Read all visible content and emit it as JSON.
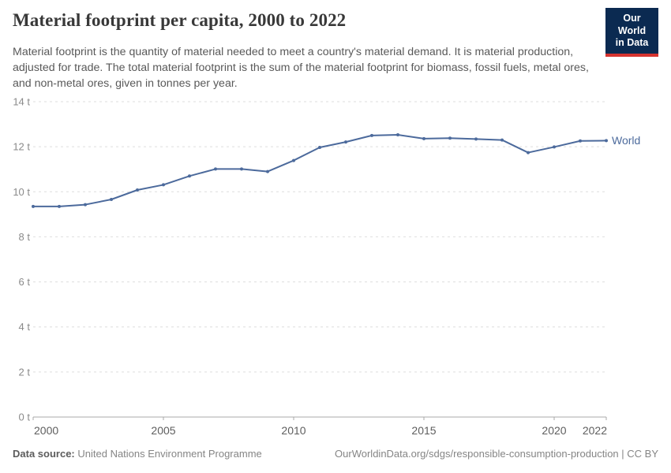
{
  "header": {
    "title": "Material footprint per capita, 2000 to 2022",
    "subtitle": "Material footprint is the quantity of material needed to meet a country's material demand. It is material production, adjusted for trade. The total material footprint is the sum of the material footprint for biomass, fossil fuels, metal ores, and non-metal ores, given in tonnes per year.",
    "logo": {
      "line1": "Our World",
      "line2": "in Data",
      "bg_color": "#0b2a51",
      "stripe_color": "#d5332f"
    }
  },
  "chart_data": {
    "type": "line",
    "title": "Material footprint per capita, 2000 to 2022",
    "x": [
      2000,
      2001,
      2002,
      2003,
      2004,
      2005,
      2006,
      2007,
      2008,
      2009,
      2010,
      2011,
      2012,
      2013,
      2014,
      2015,
      2016,
      2017,
      2018,
      2019,
      2020,
      2021,
      2022
    ],
    "series": [
      {
        "name": "World",
        "color": "#4C6A9C",
        "values": [
          9.35,
          9.35,
          9.43,
          9.66,
          10.08,
          10.31,
          10.7,
          11.01,
          11.01,
          10.9,
          11.39,
          11.97,
          12.21,
          12.5,
          12.53,
          12.36,
          12.38,
          12.34,
          12.3,
          11.74,
          11.99,
          12.26,
          12.27
        ]
      }
    ],
    "xlabel": "",
    "ylabel": "",
    "ylim": [
      0,
      14
    ],
    "yticks": [
      0,
      2,
      4,
      6,
      8,
      10,
      12,
      14
    ],
    "ytick_suffix": " t",
    "xticks": [
      2000,
      2005,
      2010,
      2015,
      2020,
      2022
    ],
    "unit": "tonnes per year",
    "grid": "horizontal-dashed",
    "legend": "line-end-label"
  },
  "footer": {
    "datasource_label": "Data source:",
    "datasource_value": "United Nations Environment Programme",
    "credit": "OurWorldinData.org/sdgs/responsible-consumption-production | CC BY"
  },
  "colors": {
    "grid": "#dedede",
    "axis": "#a8a8a8",
    "y_tick_label": "#8a8a8a",
    "x_tick_label": "#5e5e5e",
    "accent_line": "#4C6A9C"
  }
}
